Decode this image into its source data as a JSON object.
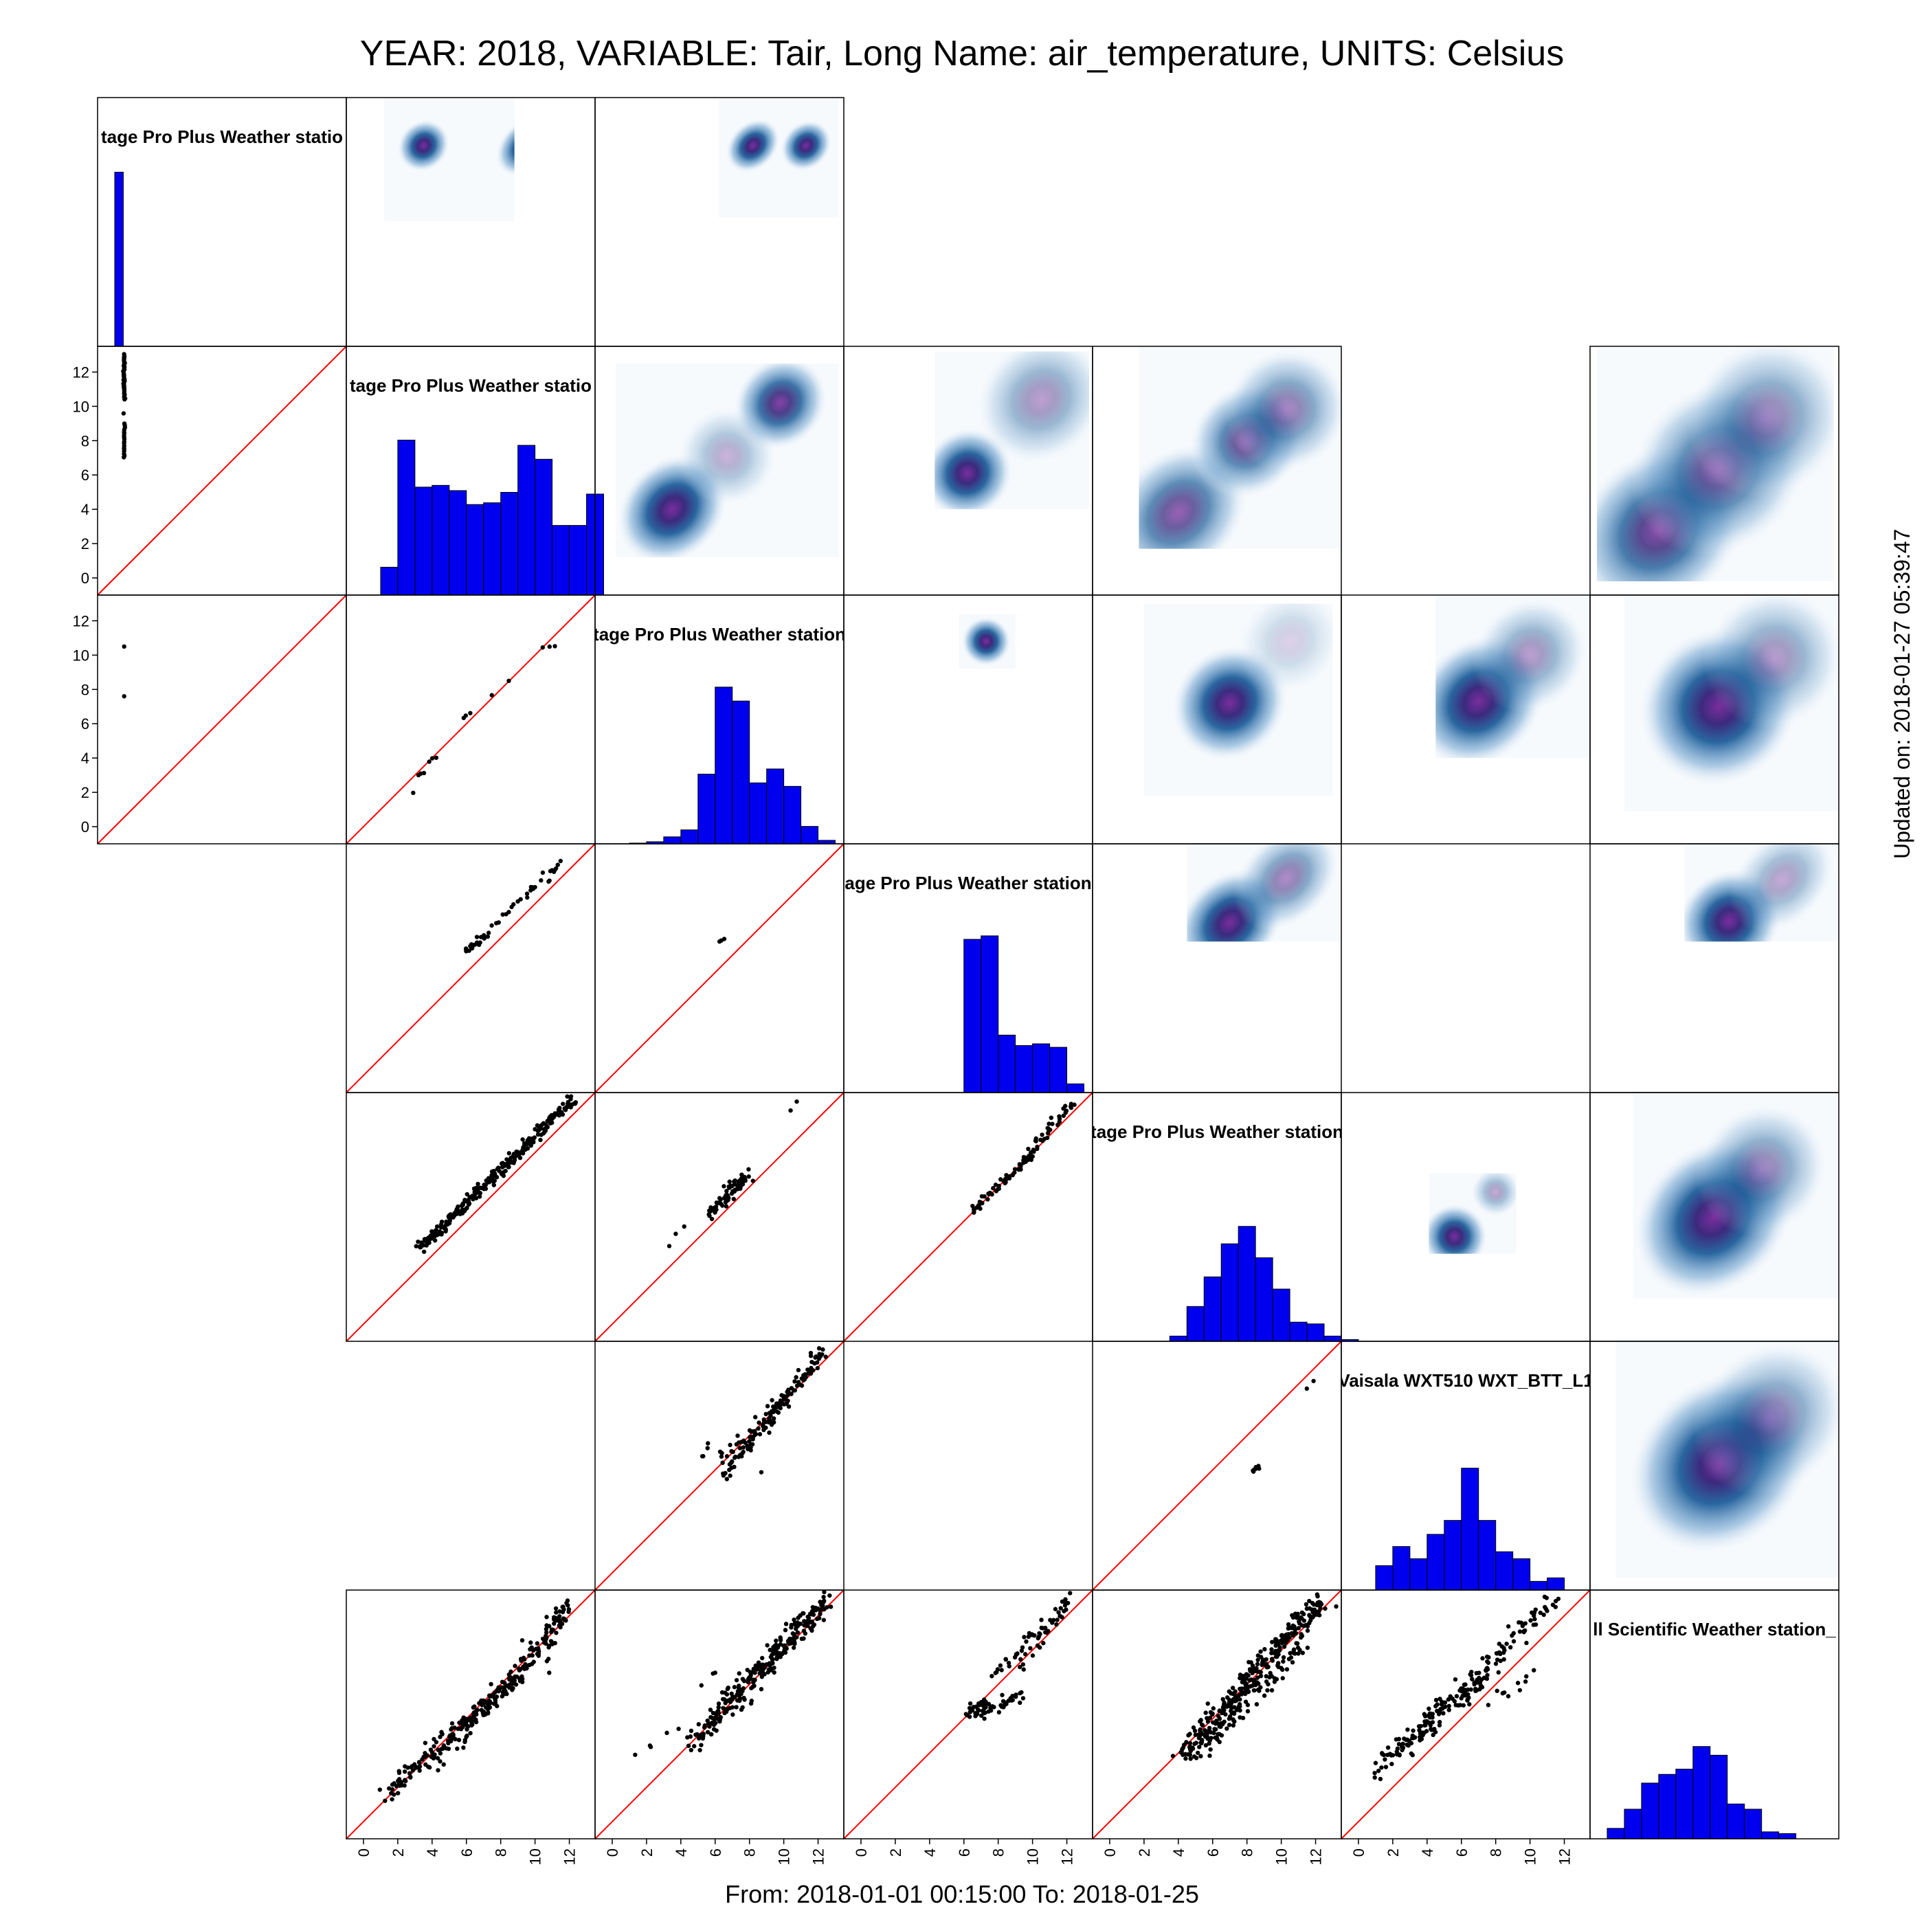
{
  "header": {
    "title": "YEAR: 2018, VARIABLE: Tair, Long Name: air_temperature, UNITS: Celsius"
  },
  "footer": {
    "range": "From: 2018-01-01 00:15:00 To: 2018-01-25"
  },
  "side": {
    "updated": "Updated on: 2018-01-27 05:39:47"
  },
  "colors": {
    "hist": "#0000ee",
    "identity_line": "#ff0000",
    "points": "#000000",
    "density_low": "#e8f1fa",
    "density_mid": "#1f5f9a",
    "density_high": "#7a2e9e"
  },
  "chart_data": {
    "type": "scatter",
    "layout": "scatterplot-matrix",
    "n": 7,
    "axis_ticks": [
      "0",
      "2",
      "4",
      "6",
      "8",
      "10",
      "12"
    ],
    "xlim": [
      -1,
      13.5
    ],
    "ylim": [
      -1,
      13.5
    ],
    "present": [
      [
        1,
        1,
        1,
        0,
        0,
        0,
        0
      ],
      [
        1,
        1,
        1,
        1,
        1,
        0,
        1
      ],
      [
        1,
        1,
        1,
        1,
        1,
        1,
        1
      ],
      [
        0,
        1,
        1,
        1,
        1,
        0,
        1
      ],
      [
        0,
        1,
        1,
        1,
        1,
        1,
        1
      ],
      [
        0,
        0,
        1,
        0,
        1,
        1,
        1
      ],
      [
        0,
        1,
        1,
        1,
        1,
        1,
        1
      ]
    ],
    "diagonal_labels": [
      "tage Pro Plus Weather statio",
      "tage Pro Plus Weather statio",
      "tage Pro Plus Weather station",
      "age Pro Plus Weather station",
      "tage Pro Plus Weather station",
      "Vaisala WXT510 WXT_BTT_L1",
      "ll Scientific  Weather station_"
    ],
    "histograms": [
      {
        "start": 0,
        "width": 0.5,
        "counts": [
          1
        ]
      },
      {
        "start": 1,
        "width": 1,
        "counts": [
          0.16,
          0.89,
          0.62,
          0.63,
          0.6,
          0.52,
          0.53,
          0.59,
          0.86,
          0.78,
          0.4,
          0.4,
          0.58
        ]
      },
      {
        "start": 1,
        "width": 1,
        "counts": [
          0.004,
          0.012,
          0.04,
          0.08,
          0.4,
          0.9,
          0.82,
          0.35,
          0.43,
          0.33,
          0.1,
          0.02
        ]
      },
      {
        "start": 6,
        "width": 1,
        "counts": [
          0.88,
          0.9,
          0.33,
          0.27,
          0.28,
          0.26,
          0.05
        ]
      },
      {
        "start": 3.5,
        "width": 1,
        "counts": [
          0.03,
          0.2,
          0.37,
          0.56,
          0.66,
          0.48,
          0.3,
          0.11,
          0.1,
          0.03,
          0.01
        ]
      },
      {
        "start": 1,
        "width": 1,
        "counts": [
          0.14,
          0.25,
          0.18,
          0.32,
          0.4,
          0.7,
          0.4,
          0.22,
          0.18,
          0.05,
          0.07
        ]
      },
      {
        "start": 0,
        "width": 1,
        "counts": [
          0.06,
          0.17,
          0.32,
          0.37,
          0.4,
          0.53,
          0.48,
          0.2,
          0.17,
          0.04,
          0.03
        ]
      }
    ],
    "densities": [
      {
        "row": 1,
        "col": 2,
        "rect": [
          1.2,
          6.3,
          8.8,
          13.8
        ],
        "blobs": [
          [
            3.5,
            10.7,
            1.0,
            0.9,
            1.0
          ],
          [
            9.5,
            10.7,
            1.3,
            0.9,
            1.0
          ]
        ]
      },
      {
        "row": 1,
        "col": 3,
        "rect": [
          6.2,
          6.5,
          13.2,
          13.8
        ],
        "blobs": [
          [
            8.2,
            10.7,
            1.1,
            0.85,
            1.0
          ],
          [
            11.3,
            10.7,
            1.0,
            0.85,
            1.0
          ]
        ]
      },
      {
        "row": 2,
        "col": 3,
        "rect": [
          0.2,
          1.2,
          13.2,
          12.5
        ],
        "blobs": [
          [
            3.5,
            4.0,
            2.2,
            1.8,
            1.0
          ],
          [
            9.8,
            10.2,
            1.8,
            1.6,
            0.9
          ],
          [
            6.7,
            7.1,
            1.8,
            1.8,
            0.35
          ]
        ]
      },
      {
        "row": 2,
        "col": 4,
        "rect": [
          4.3,
          4.0,
          13.3,
          13.2
        ],
        "blobs": [
          [
            6.2,
            6.1,
            1.7,
            1.6,
            1.0
          ],
          [
            10.5,
            10.4,
            2.5,
            2.2,
            0.45
          ]
        ]
      },
      {
        "row": 2,
        "col": 5,
        "rect": [
          1.7,
          1.7,
          13.5,
          13.5
        ],
        "blobs": [
          [
            4.0,
            3.8,
            2.8,
            2.2,
            0.75
          ],
          [
            8.0,
            8.0,
            2.2,
            2.0,
            0.75
          ],
          [
            10.3,
            9.8,
            2.3,
            2.2,
            0.55
          ]
        ]
      },
      {
        "row": 2,
        "col": 7,
        "rect": [
          -0.6,
          -0.2,
          13.2,
          13.4
        ],
        "blobs": [
          [
            3.0,
            2.8,
            3.4,
            2.8,
            0.85
          ],
          [
            6.5,
            6.4,
            3.4,
            3.0,
            0.7
          ],
          [
            9.3,
            9.3,
            3.0,
            2.8,
            0.5
          ]
        ]
      },
      {
        "row": 3,
        "col": 4,
        "rect": [
          5.7,
          9.2,
          9.0,
          12.4
        ],
        "blobs": [
          [
            7.3,
            10.8,
            0.9,
            0.9,
            1.0
          ]
        ]
      },
      {
        "row": 3,
        "col": 5,
        "rect": [
          2.0,
          1.8,
          13.0,
          13.0
        ],
        "blobs": [
          [
            7.0,
            7.2,
            2.2,
            2.0,
            1.0
          ],
          [
            10.5,
            10.8,
            2.0,
            1.8,
            0.2
          ]
        ]
      },
      {
        "row": 3,
        "col": 6,
        "rect": [
          4.5,
          4.0,
          13.5,
          13.5
        ],
        "blobs": [
          [
            7.0,
            7.3,
            2.6,
            2.2,
            1.0
          ],
          [
            10.0,
            10.0,
            2.2,
            2.0,
            0.45
          ]
        ]
      },
      {
        "row": 3,
        "col": 7,
        "rect": [
          1.0,
          0.9,
          13.5,
          13.5
        ],
        "blobs": [
          [
            6.5,
            7.0,
            3.0,
            2.8,
            1.0
          ],
          [
            9.7,
            9.8,
            2.6,
            2.5,
            0.45
          ]
        ]
      },
      {
        "row": 4,
        "col": 5,
        "rect": [
          4.5,
          7.8,
          13.5,
          13.5
        ],
        "blobs": [
          [
            7.0,
            8.9,
            2.2,
            1.7,
            1.0
          ],
          [
            10.3,
            11.5,
            2.2,
            1.6,
            0.55
          ]
        ]
      },
      {
        "row": 4,
        "col": 7,
        "rect": [
          4.5,
          7.8,
          13.5,
          13.5
        ],
        "blobs": [
          [
            7.1,
            9.0,
            2.0,
            1.8,
            1.0
          ],
          [
            10.2,
            11.4,
            2.2,
            1.6,
            0.4
          ]
        ]
      },
      {
        "row": 5,
        "col": 6,
        "rect": [
          4.1,
          4.1,
          9.2,
          8.8
        ],
        "blobs": [
          [
            5.6,
            5.1,
            1.2,
            1.2,
            1.0
          ],
          [
            8.0,
            7.7,
            0.9,
            0.9,
            0.4
          ]
        ]
      },
      {
        "row": 5,
        "col": 7,
        "rect": [
          1.5,
          1.5,
          13.5,
          13.5
        ],
        "blobs": [
          [
            6.2,
            6.2,
            3.2,
            2.6,
            1.0
          ],
          [
            9.0,
            9.0,
            2.5,
            2.3,
            0.5
          ]
        ]
      },
      {
        "row": 6,
        "col": 7,
        "rect": [
          0.5,
          -0.3,
          13.5,
          13.5
        ],
        "blobs": [
          [
            6.6,
            6.4,
            3.6,
            3.0,
            1.0
          ],
          [
            9.5,
            9.0,
            3.0,
            2.6,
            0.5
          ]
        ]
      }
    ],
    "scatters": [
      {
        "row": 2,
        "col": 1,
        "segments": [
          [
            0.55,
            10.4,
            0.55,
            13.0,
            40
          ],
          [
            0.55,
            7.0,
            0.55,
            9.0,
            18
          ],
          [
            0.55,
            9.6,
            0.55,
            9.6,
            1
          ]
        ],
        "n": 0,
        "spread": 0.02
      },
      {
        "row": 3,
        "col": 1,
        "segments": [
          [
            0.55,
            10.5,
            0.55,
            10.5,
            1
          ],
          [
            0.55,
            7.6,
            0.55,
            7.6,
            1
          ]
        ],
        "n": 0,
        "spread": 0
      },
      {
        "row": 3,
        "col": 2,
        "segments": [
          [
            3.2,
            3.0,
            3.4,
            3.1,
            3
          ],
          [
            3.9,
            3.8,
            4.2,
            4.0,
            3
          ],
          [
            5.8,
            6.4,
            6.2,
            6.6,
            3
          ],
          [
            7.4,
            7.5,
            7.6,
            7.6,
            1
          ],
          [
            8.4,
            8.4,
            8.6,
            8.5,
            1
          ],
          [
            10.5,
            10.4,
            11.2,
            10.6,
            3
          ],
          [
            2.8,
            2.0,
            2.8,
            2.0,
            1
          ]
        ],
        "n": 0,
        "spread": 0.05
      },
      {
        "row": 4,
        "col": 2,
        "segments": [
          [
            5.9,
            7.3,
            7.3,
            8.3,
            22
          ],
          [
            7.5,
            8.9,
            10.0,
            10.9,
            14
          ],
          [
            10.0,
            11.0,
            11.5,
            12.3,
            14
          ]
        ],
        "n": 0,
        "spread": 0.12
      },
      {
        "row": 4,
        "col": 3,
        "segments": [
          [
            6.3,
            7.8,
            6.5,
            8.0,
            3
          ]
        ],
        "n": 0,
        "spread": 0.05
      },
      {
        "row": 5,
        "col": 2,
        "segments": [
          [
            3.3,
            4.4,
            12.2,
            13.1,
            260
          ]
        ],
        "n": 0,
        "spread": 0.15
      },
      {
        "row": 5,
        "col": 3,
        "segments": [
          [
            5.6,
            6.5,
            7.8,
            8.4,
            60
          ],
          [
            6.6,
            8.0,
            8.0,
            8.8,
            18
          ],
          [
            3.3,
            4.7,
            4.2,
            5.6,
            3
          ],
          [
            10.5,
            12.6,
            10.8,
            12.9,
            2
          ]
        ],
        "n": 0,
        "spread": 0.14
      },
      {
        "row": 5,
        "col": 4,
        "segments": [
          [
            6.4,
            6.5,
            10.0,
            9.9,
            50
          ],
          [
            9.5,
            9.6,
            12.3,
            13.0,
            40
          ]
        ],
        "n": 0,
        "spread": 0.13
      },
      {
        "row": 6,
        "col": 3,
        "segments": [
          [
            6.5,
            5.8,
            12.3,
            12.9,
            120
          ],
          [
            6.2,
            6.7,
            10.5,
            10.3,
            25
          ],
          [
            5.3,
            6.6,
            5.6,
            7.4,
            4
          ],
          [
            9.0,
            9.9,
            10.0,
            10.4,
            4
          ],
          [
            8.4,
            5.7,
            8.4,
            5.7,
            1
          ]
        ],
        "n": 0,
        "spread": 0.22
      },
      {
        "row": 6,
        "col": 5,
        "segments": [
          [
            8.4,
            5.9,
            8.7,
            6.2,
            8
          ],
          [
            11.4,
            10.7,
            11.8,
            11.2,
            2
          ]
        ],
        "n": 0,
        "spread": 0.06
      },
      {
        "row": 7,
        "col": 2,
        "segments": [
          [
            1.3,
            1.6,
            6.0,
            5.8,
            90
          ],
          [
            5.8,
            5.6,
            9.0,
            8.4,
            110
          ],
          [
            8.7,
            8.4,
            12.0,
            12.6,
            80
          ],
          [
            4.0,
            3.3,
            6.2,
            5.0,
            20
          ],
          [
            10.5,
            9.2,
            11.8,
            12.5,
            15
          ]
        ],
        "n": 0,
        "spread": 0.25
      },
      {
        "row": 7,
        "col": 3,
        "segments": [
          [
            4.8,
            4.5,
            12.5,
            13.0,
            220
          ],
          [
            6.4,
            6.9,
            12.0,
            12.6,
            60
          ],
          [
            1.6,
            4.0,
            3.8,
            5.6,
            5
          ],
          [
            5.6,
            8.4,
            6.2,
            9.0,
            3
          ]
        ],
        "n": 0,
        "spread": 0.3
      },
      {
        "row": 7,
        "col": 4,
        "segments": [
          [
            6.5,
            6.3,
            9.5,
            7.3,
            40
          ],
          [
            6.3,
            6.2,
            7.3,
            7.0,
            20
          ],
          [
            7.6,
            8.5,
            12.3,
            13.0,
            40
          ],
          [
            9.3,
            9.0,
            12.0,
            12.8,
            25
          ]
        ],
        "n": 0,
        "spread": 0.18
      },
      {
        "row": 7,
        "col": 5,
        "segments": [
          [
            4.3,
            4.0,
            12.3,
            12.9,
            300
          ],
          [
            5.0,
            3.8,
            11.0,
            10.0,
            80
          ],
          [
            10.5,
            9.2,
            11.8,
            12.6,
            12
          ]
        ],
        "n": 0,
        "spread": 0.3
      },
      {
        "row": 7,
        "col": 6,
        "segments": [
          [
            1.2,
            3.6,
            4.5,
            5.4,
            40
          ],
          [
            3.0,
            5.0,
            7.5,
            8.6,
            90
          ],
          [
            6.0,
            7.5,
            11.5,
            13.0,
            70
          ],
          [
            1.0,
            2.7,
            2.2,
            4.6,
            12
          ],
          [
            8.0,
            7.0,
            10.0,
            8.8,
            10
          ]
        ],
        "n": 0,
        "spread": 0.3
      }
    ]
  }
}
